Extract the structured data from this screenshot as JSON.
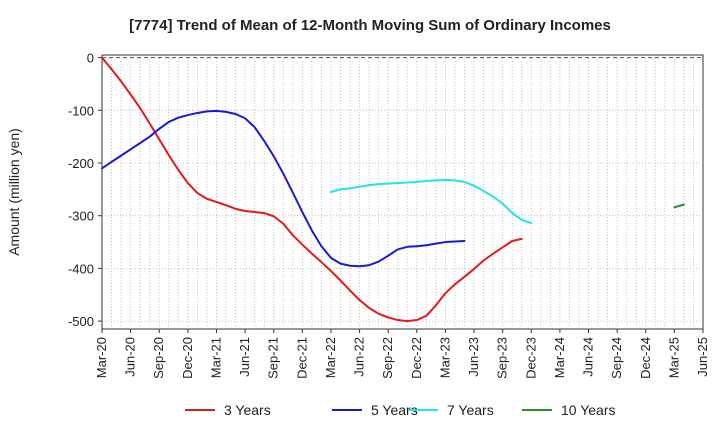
{
  "chart_data": {
    "type": "line",
    "title": "[7774]  Trend of Mean of 12-Month Moving Sum of Ordinary Incomes",
    "xlabel": "",
    "ylabel": "Amount (million yen)",
    "ylim": [
      -515,
      5
    ],
    "yticks": [
      0,
      -100,
      -200,
      -300,
      -400,
      -500
    ],
    "ytick_labels": [
      "0",
      "-100",
      "-200",
      "-300",
      "-400",
      "-500"
    ],
    "xtick_labels": [
      "Mar-20",
      "Jun-20",
      "Sep-20",
      "Dec-20",
      "Mar-21",
      "Jun-21",
      "Sep-21",
      "Dec-21",
      "Mar-22",
      "Jun-22",
      "Sep-22",
      "Dec-22",
      "Mar-23",
      "Jun-23",
      "Sep-23",
      "Dec-23",
      "Mar-24",
      "Jun-24",
      "Sep-24",
      "Dec-24",
      "Mar-25",
      "Jun-25"
    ],
    "x_months_total": 63,
    "grid": true,
    "legend_position": "bottom",
    "series": [
      {
        "name": "3 Years",
        "color": "#e31a1c",
        "start_month": 0,
        "values": [
          0,
          -22,
          -45,
          -70,
          -96,
          -125,
          -155,
          -185,
          -213,
          -238,
          -257,
          -268,
          -274,
          -280,
          -287,
          -291,
          -293,
          -295,
          -301,
          -315,
          -337,
          -355,
          -372,
          -388,
          -405,
          -423,
          -442,
          -460,
          -475,
          -486,
          -493,
          -498,
          -500,
          -498,
          -490,
          -470,
          -447,
          -430,
          -416,
          -401,
          -385,
          -372,
          -360,
          -348,
          -344
        ]
      },
      {
        "name": "5 Years",
        "color": "#1a1acf",
        "start_month": 0,
        "values": [
          -210,
          -198,
          -186,
          -174,
          -162,
          -150,
          -135,
          -122,
          -114,
          -109,
          -105,
          -102,
          -101,
          -103,
          -107,
          -115,
          -132,
          -158,
          -187,
          -220,
          -256,
          -293,
          -328,
          -358,
          -380,
          -391,
          -395,
          -396,
          -394,
          -387,
          -376,
          -364,
          -359,
          -358,
          -356,
          -353,
          -350,
          -349,
          -348
        ]
      },
      {
        "name": "7 Years",
        "color": "#22e5e5",
        "start_month": 24,
        "values": [
          -255,
          -250,
          -248,
          -245,
          -242,
          -240,
          -239,
          -238,
          -237,
          -236,
          -234,
          -233,
          -232,
          -233,
          -236,
          -243,
          -253,
          -264,
          -277,
          -295,
          -308,
          -314
        ]
      },
      {
        "name": "10 Years",
        "color": "#2e8b2e",
        "start_month": 60,
        "values": [
          -284,
          -279
        ]
      }
    ]
  }
}
